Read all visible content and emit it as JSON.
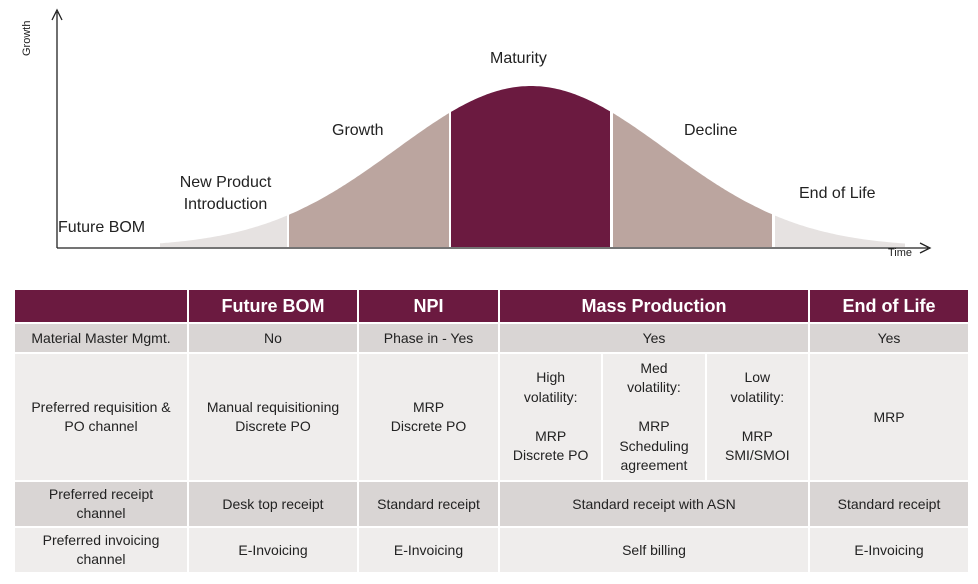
{
  "diagram": {
    "y_axis_label": "Growth",
    "x_axis_label": "Time",
    "phases": {
      "future_bom": "Future BOM",
      "npi": "New Product\nIntroduction",
      "growth": "Growth",
      "maturity": "Maturity",
      "decline": "Decline",
      "end_of_life": "End of Life"
    },
    "colors": {
      "light": "#e6e2e1",
      "mid": "#bba59f",
      "dark": "#6b1a40"
    }
  },
  "table": {
    "headers": [
      "",
      "Future BOM",
      "NPI",
      "Mass Production",
      "End of Life"
    ],
    "rows": [
      {
        "label": "Material Master Mgmt.",
        "future_bom": "No",
        "npi": "Phase in - Yes",
        "mass": "Yes",
        "eol": "Yes"
      },
      {
        "label": "Preferred requisition &\nPO channel",
        "future_bom": "Manual requisitioning\nDiscrete PO",
        "npi": "MRP\nDiscrete PO",
        "mass_sub": [
          "High\nvolatility:\n\nMRP\nDiscrete PO",
          "Med\nvolatility:\n\nMRP\nScheduling\nagreement",
          "Low\nvolatility:\n\nMRP\nSMI/SMOI"
        ],
        "eol": "MRP"
      },
      {
        "label": "Preferred receipt\nchannel",
        "future_bom": "Desk top  receipt",
        "npi": "Standard receipt",
        "mass": "Standard receipt with ASN",
        "eol": "Standard receipt"
      },
      {
        "label": "Preferred  invoicing\nchannel",
        "future_bom": "E-Invoicing",
        "npi": "E-Invoicing",
        "mass": "Self billing",
        "eol": "E-Invoicing"
      }
    ]
  }
}
